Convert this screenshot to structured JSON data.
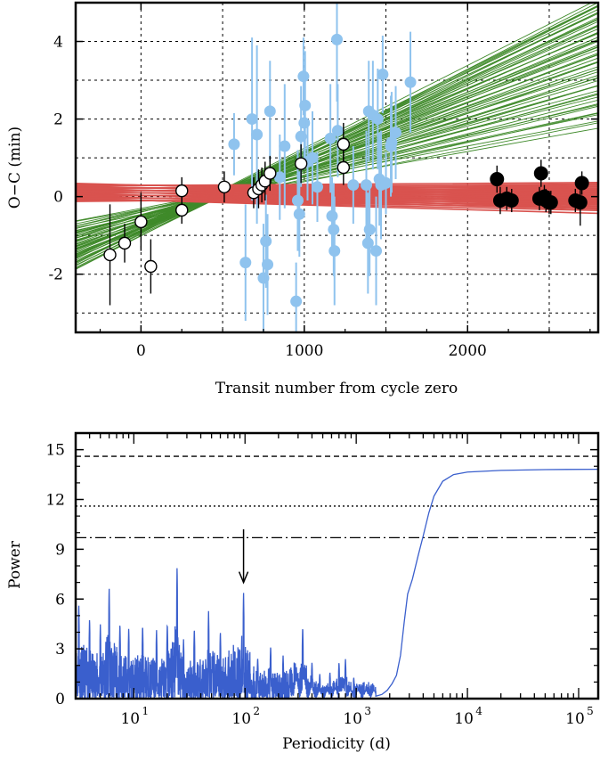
{
  "colors": {
    "green_fits": "#3f8a2a",
    "red_fits": "#d9534f",
    "light_blue_points": "#8fc3ee",
    "periodogram": "#3a5fcd"
  },
  "chart_data": [
    {
      "type": "scatter",
      "title": "",
      "xlabel": "Transit number from cycle zero",
      "ylabel": "O−C (min)",
      "xlim": [
        -400,
        2800
      ],
      "ylim": [
        -3.5,
        5.0
      ],
      "xticks": [
        0,
        1000,
        2000
      ],
      "xtick_labels": [
        "0",
        "1000",
        "2000"
      ],
      "yticks": [
        -2,
        0,
        2,
        4
      ],
      "ytick_labels": [
        "-2",
        "0",
        "2",
        "4"
      ],
      "grid": true,
      "legend": "none",
      "fit_bands": [
        {
          "name": "linear-trend-fits",
          "color": "#3f8a2a",
          "count": 60,
          "anchor_x": 450,
          "anchor_y": 0.0,
          "slope_min": 0.00075,
          "slope_max": 0.00215
        },
        {
          "name": "flat-fits",
          "color": "#d9534f",
          "count": 45,
          "intercept_min": -0.15,
          "intercept_max": 0.3,
          "slope_min": -0.00012,
          "slope_max": 5e-05
        }
      ],
      "series": [
        {
          "name": "",
          "marker": "light-blue-circle",
          "color": "#8fc3ee",
          "points": [
            [
              570,
              1.35,
              0.8
            ],
            [
              640,
              -1.7,
              1.5
            ],
            [
              680,
              2.0,
              2.1
            ],
            [
              710,
              1.6,
              2.3
            ],
            [
              750,
              -2.1,
              1.4
            ],
            [
              765,
              -1.15,
              1.2
            ],
            [
              775,
              -1.75,
              1.3
            ],
            [
              790,
              2.2,
              1.3
            ],
            [
              850,
              0.5,
              1.1
            ],
            [
              880,
              1.3,
              1.6
            ],
            [
              950,
              -2.7,
              1.0
            ],
            [
              960,
              -0.1,
              1.3
            ],
            [
              970,
              -0.45,
              1.1
            ],
            [
              980,
              1.55,
              1.3
            ],
            [
              995,
              3.1,
              1.0
            ],
            [
              1000,
              1.9,
              1.2
            ],
            [
              1005,
              2.35,
              1.4
            ],
            [
              1020,
              0.9,
              1.0
            ],
            [
              1050,
              1.0,
              1.2
            ],
            [
              1080,
              0.25,
              0.9
            ],
            [
              1160,
              1.5,
              1.4
            ],
            [
              1170,
              -0.5,
              1.0
            ],
            [
              1180,
              -0.85,
              1.2
            ],
            [
              1185,
              -1.4,
              1.4
            ],
            [
              1200,
              4.05,
              1.6
            ],
            [
              1205,
              1.7,
              1.2
            ],
            [
              1300,
              0.3,
              1.0
            ],
            [
              1380,
              0.3,
              1.4
            ],
            [
              1390,
              -1.2,
              1.3
            ],
            [
              1395,
              2.2,
              1.3
            ],
            [
              1400,
              -0.85,
              1.2
            ],
            [
              1420,
              2.1,
              1.4
            ],
            [
              1440,
              -1.4,
              1.4
            ],
            [
              1450,
              2.0,
              1.3
            ],
            [
              1460,
              0.45,
              1.2
            ],
            [
              1470,
              0.3,
              1.4
            ],
            [
              1480,
              3.15,
              1.0
            ],
            [
              1500,
              0.35,
              0.8
            ],
            [
              1530,
              1.3,
              1.3
            ],
            [
              1535,
              1.4,
              1.3
            ],
            [
              1560,
              1.65,
              1.2
            ],
            [
              1650,
              2.95,
              1.3
            ]
          ]
        },
        {
          "name": "",
          "marker": "white-circle",
          "color": "#ffffff",
          "points": [
            [
              -190,
              -1.5,
              1.3
            ],
            [
              -100,
              -1.2,
              0.5
            ],
            [
              0,
              -0.65,
              0.75
            ],
            [
              60,
              -1.8,
              0.7
            ],
            [
              250,
              0.15,
              0.35
            ],
            [
              250,
              -0.35,
              0.35
            ],
            [
              510,
              0.25,
              0.4
            ],
            [
              690,
              0.1,
              0.4
            ],
            [
              720,
              0.2,
              0.5
            ],
            [
              740,
              0.3,
              0.45
            ],
            [
              760,
              0.4,
              0.5
            ],
            [
              790,
              0.6,
              0.45
            ],
            [
              980,
              0.85,
              0.5
            ],
            [
              1240,
              1.35,
              0.55
            ],
            [
              1240,
              0.75,
              0.45
            ]
          ]
        },
        {
          "name": "",
          "marker": "black-circle",
          "color": "#000000",
          "points": [
            [
              2180,
              0.45,
              0.35
            ],
            [
              2200,
              -0.1,
              0.35
            ],
            [
              2240,
              -0.05,
              0.3
            ],
            [
              2270,
              -0.1,
              0.3
            ],
            [
              2440,
              -0.05,
              0.3
            ],
            [
              2450,
              0.6,
              0.35
            ],
            [
              2470,
              0.0,
              0.3
            ],
            [
              2480,
              -0.1,
              0.3
            ],
            [
              2500,
              -0.15,
              0.3
            ],
            [
              2510,
              -0.15,
              0.3
            ],
            [
              2660,
              -0.1,
              0.3
            ],
            [
              2690,
              -0.15,
              0.6
            ],
            [
              2700,
              0.35,
              0.3
            ]
          ]
        }
      ]
    },
    {
      "type": "line",
      "title": "",
      "xlabel": "Periodicity (d)",
      "ylabel": "Power",
      "xscale": "log",
      "xlim": [
        3,
        150000
      ],
      "ylim": [
        0,
        16
      ],
      "yticks": [
        0,
        3,
        6,
        9,
        12,
        15
      ],
      "ytick_labels": [
        "0",
        "3",
        "6",
        "9",
        "12",
        "15"
      ],
      "xticks": [
        10,
        100,
        1000,
        10000,
        100000
      ],
      "xtick_labels": [
        {
          "base": "10",
          "exp": "1"
        },
        {
          "base": "10",
          "exp": "2"
        },
        {
          "base": "10",
          "exp": "3"
        },
        {
          "base": "10",
          "exp": "4"
        },
        {
          "base": "10",
          "exp": "5"
        }
      ],
      "grid": false,
      "legend": "none",
      "color": "#3a5fcd",
      "threshold_lines": [
        {
          "y": 14.6,
          "style": "dashed"
        },
        {
          "y": 11.6,
          "style": "dotted"
        },
        {
          "y": 9.7,
          "style": "dashdot"
        }
      ],
      "arrow": {
        "x": 97,
        "y_from": 10.2,
        "y_to": 7.0
      },
      "peaks": [
        [
          3.2,
          5.8
        ],
        [
          4.0,
          4.9
        ],
        [
          5.0,
          4.5
        ],
        [
          6.0,
          6.8
        ],
        [
          7.5,
          4.6
        ],
        [
          9.0,
          4.3
        ],
        [
          12.0,
          4.5
        ],
        [
          16.0,
          4.2
        ],
        [
          20.0,
          4.6
        ],
        [
          24.5,
          8.1
        ],
        [
          28.0,
          3.6
        ],
        [
          35.0,
          4.3
        ],
        [
          47.0,
          5.3
        ],
        [
          60.0,
          4.1
        ],
        [
          97.0,
          6.5
        ],
        [
          130.0,
          2.5
        ],
        [
          170.0,
          3.2
        ],
        [
          220.0,
          2.6
        ],
        [
          330.0,
          4.4
        ],
        [
          400.0,
          2.2
        ],
        [
          470.0,
          1.5
        ],
        [
          580.0,
          1.6
        ],
        [
          700.0,
          2.2
        ],
        [
          800.0,
          2.4
        ],
        [
          950.0,
          1.3
        ]
      ],
      "late_curve": [
        [
          1500,
          0.15
        ],
        [
          1700,
          0.25
        ],
        [
          1900,
          0.5
        ],
        [
          2100,
          0.9
        ],
        [
          2300,
          1.4
        ],
        [
          2500,
          2.6
        ],
        [
          2700,
          4.6
        ],
        [
          2900,
          6.3
        ],
        [
          3200,
          7.2
        ],
        [
          3600,
          8.6
        ],
        [
          4000,
          9.8
        ],
        [
          4500,
          11.2
        ],
        [
          5000,
          12.2
        ],
        [
          6000,
          13.1
        ],
        [
          7500,
          13.5
        ],
        [
          10000,
          13.65
        ],
        [
          20000,
          13.75
        ],
        [
          50000,
          13.8
        ],
        [
          150000,
          13.82
        ]
      ]
    }
  ]
}
